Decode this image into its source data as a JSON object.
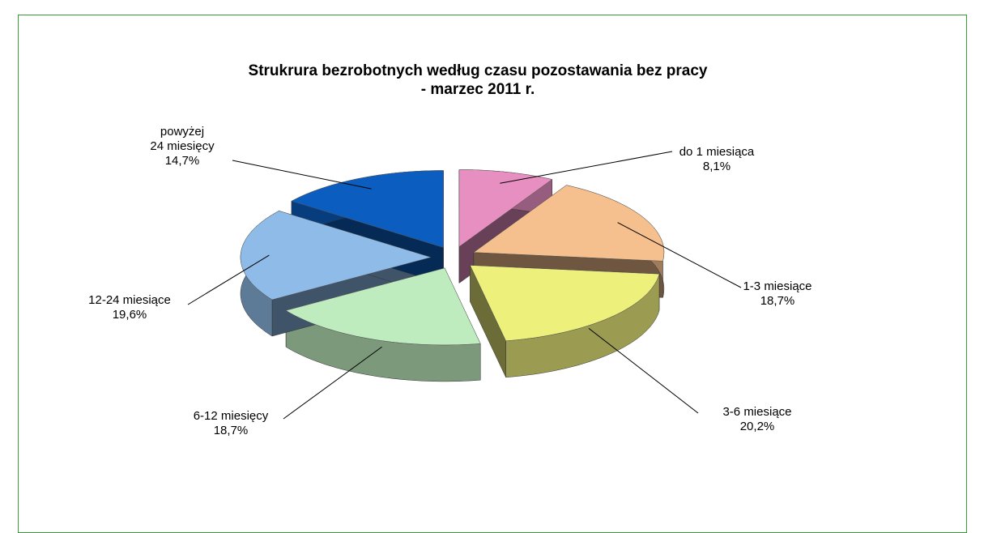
{
  "chart_data": {
    "type": "pie3d",
    "title": "Strukrura bezrobotnych według czasu pozostawania bez pracy\n- marzec 2011 r.",
    "categories": [
      "do 1 miesiąca",
      "1-3 miesiące",
      "3-6 miesiące",
      "6-12 miesięcy",
      "12-24 miesiące",
      "powyżej\n24 miesięcy"
    ],
    "values": [
      8.1,
      18.7,
      20.2,
      18.7,
      19.6,
      14.7
    ],
    "value_labels": [
      "8,1%",
      "18,7%",
      "20,2%",
      "18,7%",
      "19,6%",
      "14,7%"
    ],
    "colors": [
      "#e88fc2",
      "#f5c08e",
      "#eef07c",
      "#bfecbf",
      "#8fbbe9",
      "#0b5ec0"
    ]
  }
}
